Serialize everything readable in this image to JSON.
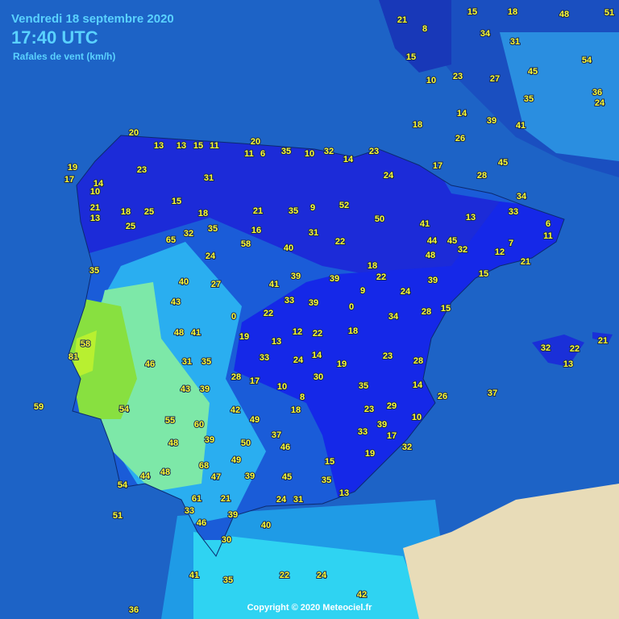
{
  "header": {
    "date": "Vendredi 18 septembre 2020",
    "time": "17:40 UTC",
    "subtitle": "Rafales de vent (km/h)"
  },
  "footer": {
    "copyright": "Copyright © 2020 Meteociel.fr"
  },
  "stations": [
    20,
    13,
    13,
    15,
    11,
    20,
    11,
    6,
    35,
    10,
    32,
    14,
    23,
    24,
    23,
    31,
    19,
    17,
    14,
    10,
    21,
    13,
    18,
    25,
    25,
    15,
    18,
    21,
    35,
    9,
    52,
    50,
    41,
    65,
    32,
    35,
    16,
    31,
    22,
    58,
    40,
    24,
    35,
    40,
    27,
    18,
    44,
    45,
    32,
    48,
    41,
    39,
    39,
    22,
    24,
    39,
    9,
    0,
    34,
    28,
    15,
    43,
    48,
    41,
    0,
    22,
    33,
    39,
    19,
    13,
    12,
    22,
    18,
    58,
    81,
    46,
    31,
    35,
    33,
    24,
    14,
    19,
    23,
    28,
    28,
    17,
    30,
    10,
    35,
    14,
    26,
    43,
    39,
    8,
    18,
    23,
    29,
    10,
    59,
    54,
    42,
    49,
    37,
    39,
    33,
    17,
    55,
    60,
    39,
    48,
    50,
    46,
    32,
    68,
    49,
    15,
    19,
    48,
    47,
    39,
    45,
    35,
    44,
    54,
    13,
    61,
    21,
    24,
    31,
    51,
    33,
    39,
    46,
    30,
    40,
    41,
    35,
    22,
    24,
    36,
    42,
    15,
    18,
    48,
    51,
    21,
    8,
    34,
    31,
    15,
    10,
    23,
    54,
    45,
    27,
    36,
    35,
    24,
    14,
    39,
    41,
    18,
    17,
    26,
    28,
    45,
    34,
    33,
    13,
    6,
    11,
    7,
    12,
    21,
    15,
    21,
    22,
    32,
    13,
    37
  ]
}
